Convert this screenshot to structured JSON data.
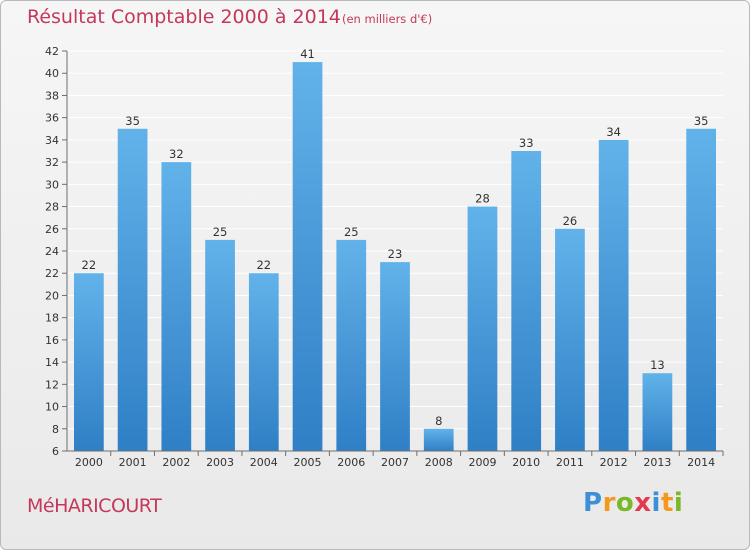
{
  "header": {
    "title": "Résultat Comptable 2000 à 2014",
    "subtitle": "(en milliers d'€)"
  },
  "footer": {
    "commune": "MéHARICOURT",
    "logo_letters": [
      {
        "ch": "P",
        "color": "#3e8fd6"
      },
      {
        "ch": "r",
        "color": "#f39a1e"
      },
      {
        "ch": "o",
        "color": "#7ab829"
      },
      {
        "ch": "x",
        "color": "#e23a4e"
      },
      {
        "ch": "i",
        "color": "#3e8fd6"
      },
      {
        "ch": "t",
        "color": "#f39a1e"
      },
      {
        "ch": "i",
        "color": "#7ab829"
      }
    ]
  },
  "colors": {
    "bar_light": "#62b2ea",
    "bar_dark": "#2f7fc6",
    "grid": "#ffffff",
    "axis": "#6e6e6e",
    "text": "#333333"
  },
  "chart_data": {
    "type": "bar",
    "categories": [
      "2000",
      "2001",
      "2002",
      "2003",
      "2004",
      "2005",
      "2006",
      "2007",
      "2008",
      "2009",
      "2010",
      "2011",
      "2012",
      "2013",
      "2014"
    ],
    "values": [
      22,
      35,
      32,
      25,
      22,
      41,
      25,
      23,
      8,
      28,
      33,
      26,
      34,
      13,
      35
    ],
    "title": "Résultat Comptable 2000 à 2014",
    "subtitle": "(en milliers d'€)",
    "ylim": [
      6,
      42
    ],
    "yticks": [
      6,
      8,
      10,
      12,
      14,
      16,
      18,
      20,
      22,
      24,
      26,
      28,
      30,
      32,
      34,
      36,
      38,
      40,
      42
    ],
    "grid": true,
    "data_labels": true
  }
}
